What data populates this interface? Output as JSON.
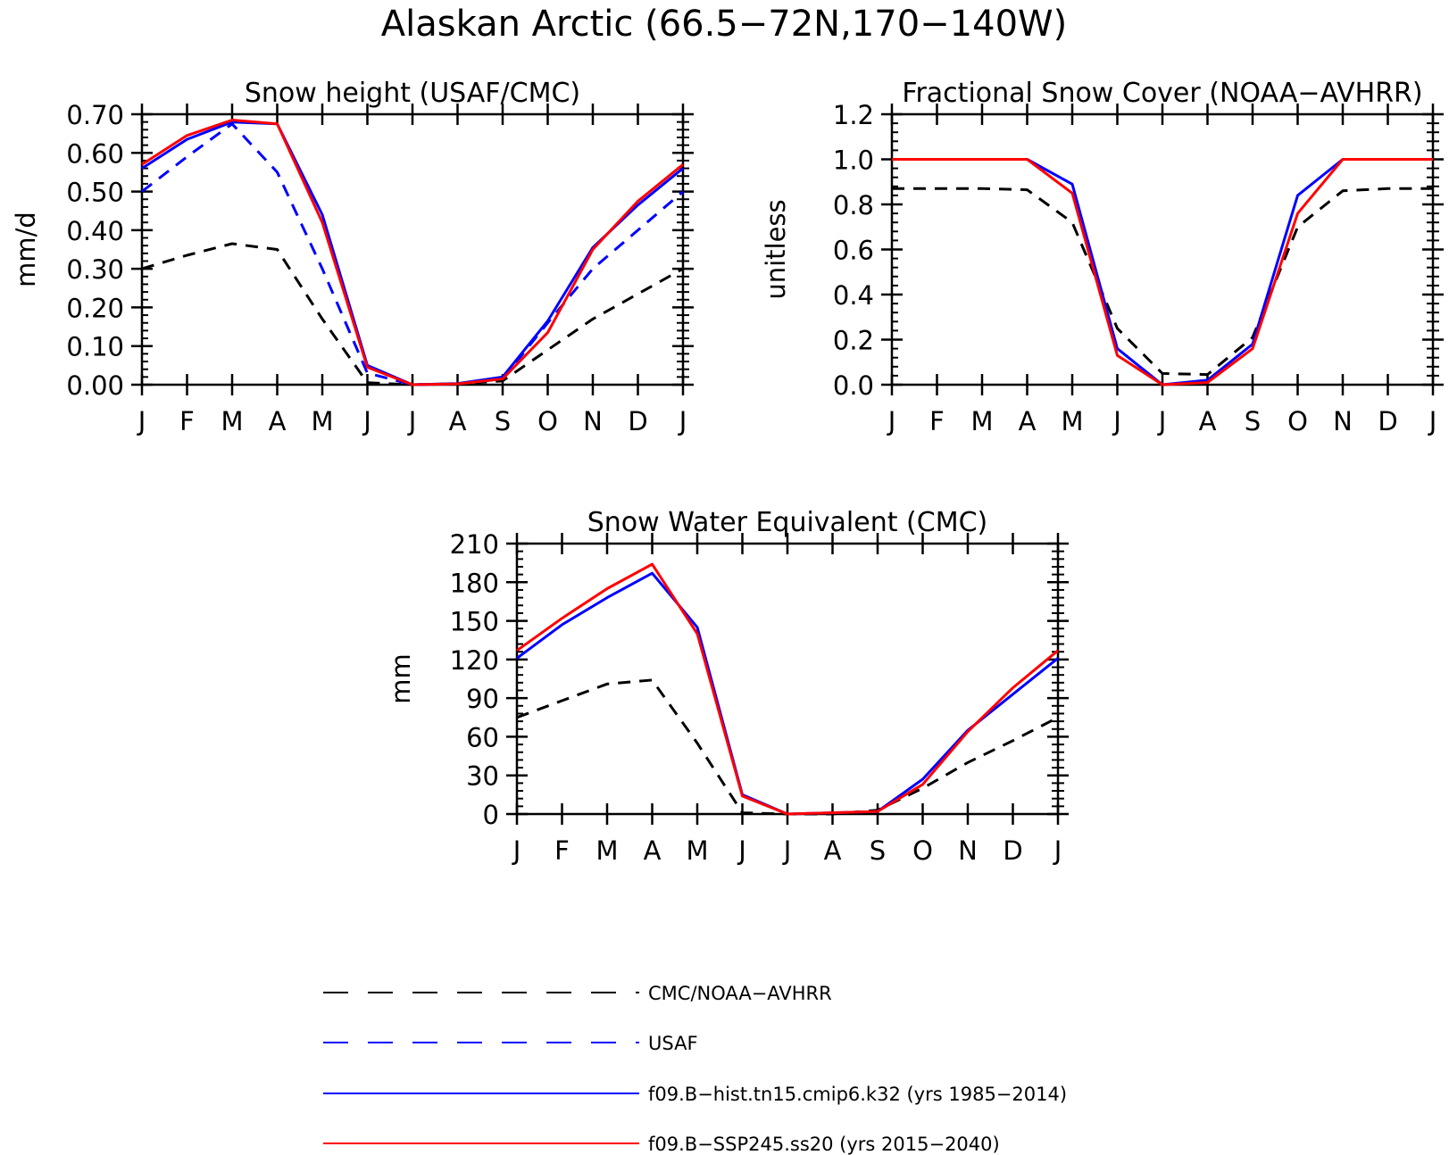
{
  "title": "Alaskan Arctic (66.5−72N,170−140W)",
  "colors": {
    "obs": "#000000",
    "usaf": "#0000ff",
    "hist": "#0000ff",
    "ssp": "#ff0000"
  },
  "legend": [
    {
      "key": "obs",
      "label": "CMC/NOAA−AVHRR",
      "style": "dashed"
    },
    {
      "key": "usaf",
      "label": "USAF",
      "style": "dashed"
    },
    {
      "key": "hist",
      "label": "f09.B−hist.tn15.cmip6.k32 (yrs 1985−2014)",
      "style": "solid"
    },
    {
      "key": "ssp",
      "label": "f09.B−SSP245.ss20 (yrs 2015−2040)",
      "style": "solid"
    }
  ],
  "chart_data": [
    {
      "type": "line",
      "title": "Snow height (USAF/CMC)",
      "ylabel": "mm/d",
      "xlabel": "",
      "categories": [
        "J",
        "F",
        "M",
        "A",
        "M",
        "J",
        "J",
        "A",
        "S",
        "O",
        "N",
        "D",
        "J"
      ],
      "ylim": [
        0,
        0.7
      ],
      "yticks": [
        "0.00",
        "0.10",
        "0.20",
        "0.30",
        "0.40",
        "0.50",
        "0.60",
        "0.70"
      ],
      "series": [
        {
          "key": "obs",
          "values": [
            0.3,
            0.335,
            0.365,
            0.35,
            0.17,
            0.005,
            0.0,
            0.002,
            0.01,
            0.09,
            0.17,
            0.235,
            0.3
          ]
        },
        {
          "key": "usaf",
          "values": [
            0.5,
            0.59,
            0.675,
            0.55,
            0.3,
            0.03,
            0.0,
            0.002,
            0.015,
            0.16,
            0.3,
            0.4,
            0.5
          ]
        },
        {
          "key": "hist",
          "values": [
            0.56,
            0.635,
            0.68,
            0.675,
            0.44,
            0.05,
            0.0,
            0.003,
            0.02,
            0.165,
            0.355,
            0.465,
            0.56
          ]
        },
        {
          "key": "ssp",
          "values": [
            0.57,
            0.645,
            0.685,
            0.675,
            0.42,
            0.045,
            0.0,
            0.002,
            0.015,
            0.135,
            0.35,
            0.475,
            0.57
          ]
        }
      ]
    },
    {
      "type": "line",
      "title": "Fractional Snow Cover (NOAA−AVHRR)",
      "ylabel": "unitless",
      "xlabel": "",
      "categories": [
        "J",
        "F",
        "M",
        "A",
        "M",
        "J",
        "J",
        "A",
        "S",
        "O",
        "N",
        "D",
        "J"
      ],
      "ylim": [
        0,
        1.2
      ],
      "yticks": [
        "0.0",
        "0.2",
        "0.4",
        "0.6",
        "0.8",
        "1.0",
        "1.2"
      ],
      "series": [
        {
          "key": "obs",
          "values": [
            0.87,
            0.87,
            0.87,
            0.865,
            0.72,
            0.25,
            0.05,
            0.045,
            0.21,
            0.7,
            0.86,
            0.87,
            0.87
          ]
        },
        {
          "key": "hist",
          "values": [
            1.0,
            1.0,
            1.0,
            1.0,
            0.89,
            0.16,
            0.0,
            0.02,
            0.18,
            0.84,
            1.0,
            1.0,
            1.0
          ]
        },
        {
          "key": "ssp",
          "values": [
            1.0,
            1.0,
            1.0,
            1.0,
            0.85,
            0.13,
            0.0,
            0.01,
            0.16,
            0.76,
            1.0,
            1.0,
            1.0
          ]
        }
      ]
    },
    {
      "type": "line",
      "title": "Snow Water Equivalent (CMC)",
      "ylabel": "mm",
      "xlabel": "",
      "categories": [
        "J",
        "F",
        "M",
        "A",
        "M",
        "J",
        "J",
        "A",
        "S",
        "O",
        "N",
        "D",
        "J"
      ],
      "ylim": [
        0,
        210
      ],
      "yticks": [
        "0",
        "30",
        "60",
        "90",
        "120",
        "150",
        "180",
        "210"
      ],
      "series": [
        {
          "key": "obs",
          "values": [
            75,
            88,
            101,
            104,
            55,
            1,
            0,
            0,
            3,
            20,
            40,
            57,
            75
          ]
        },
        {
          "key": "hist",
          "values": [
            121,
            147,
            168,
            187,
            145,
            15,
            0,
            1,
            2,
            27,
            65,
            93,
            121
          ]
        },
        {
          "key": "ssp",
          "values": [
            127,
            152,
            175,
            194,
            140,
            14,
            0,
            1,
            2,
            23,
            64,
            98,
            127
          ]
        }
      ]
    }
  ]
}
